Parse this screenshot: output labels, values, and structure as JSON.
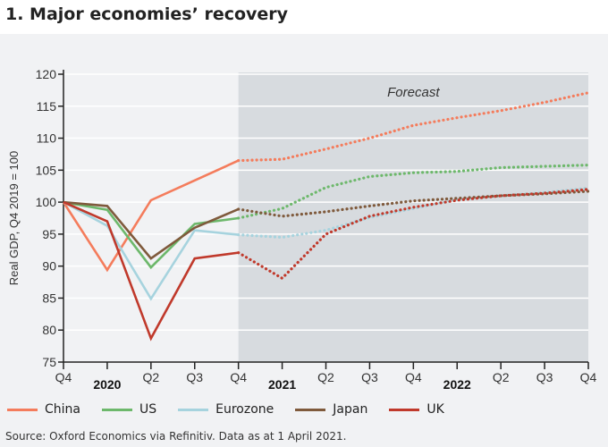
{
  "title": "1. Major economies’ recovery",
  "source": "Source: Oxford Economics via Refinitiv. Data as at 1 April 2021.",
  "chart_data": {
    "type": "line",
    "title": "1. Major economies’ recovery",
    "ylabel": "Real GDP,  Q4 2019 = 100",
    "xlabel": "",
    "ylim": [
      75,
      120
    ],
    "yticks": [
      75,
      80,
      85,
      90,
      95,
      100,
      105,
      110,
      115,
      120
    ],
    "x": [
      "Q4",
      "2020",
      "Q2",
      "Q3",
      "Q4",
      "2021",
      "Q2",
      "Q3",
      "Q4",
      "2022",
      "Q2",
      "Q3",
      "Q4"
    ],
    "forecast_start_index": 4,
    "annotation": "Forecast",
    "legend_position": "bottom",
    "grid": true,
    "series": [
      {
        "name": "China",
        "color": "#f47c5c",
        "values": [
          100,
          89.4,
          100.3,
          103.4,
          106.5,
          106.7,
          108.3,
          110.0,
          112.0,
          113.2,
          114.3,
          115.6,
          117.1
        ]
      },
      {
        "name": "US",
        "color": "#6db86b",
        "values": [
          100,
          98.8,
          89.8,
          96.6,
          97.5,
          99.0,
          102.3,
          104.0,
          104.6,
          104.8,
          105.4,
          105.6,
          105.8
        ]
      },
      {
        "name": "Eurozone",
        "color": "#a6d3de",
        "values": [
          100,
          96.3,
          84.9,
          95.6,
          94.9,
          94.5,
          95.6,
          97.6,
          99.0,
          100.4,
          101.0,
          101.5,
          102.2
        ]
      },
      {
        "name": "Japan",
        "color": "#7f5a3c",
        "values": [
          100,
          99.4,
          91.2,
          96.0,
          98.9,
          97.8,
          98.5,
          99.4,
          100.2,
          100.6,
          101.0,
          101.3,
          101.7
        ]
      },
      {
        "name": "UK",
        "color": "#c0392b",
        "values": [
          100,
          97.0,
          78.7,
          91.2,
          92.1,
          88.1,
          95.0,
          97.8,
          99.2,
          100.3,
          101.0,
          101.4,
          102.0
        ]
      }
    ]
  }
}
